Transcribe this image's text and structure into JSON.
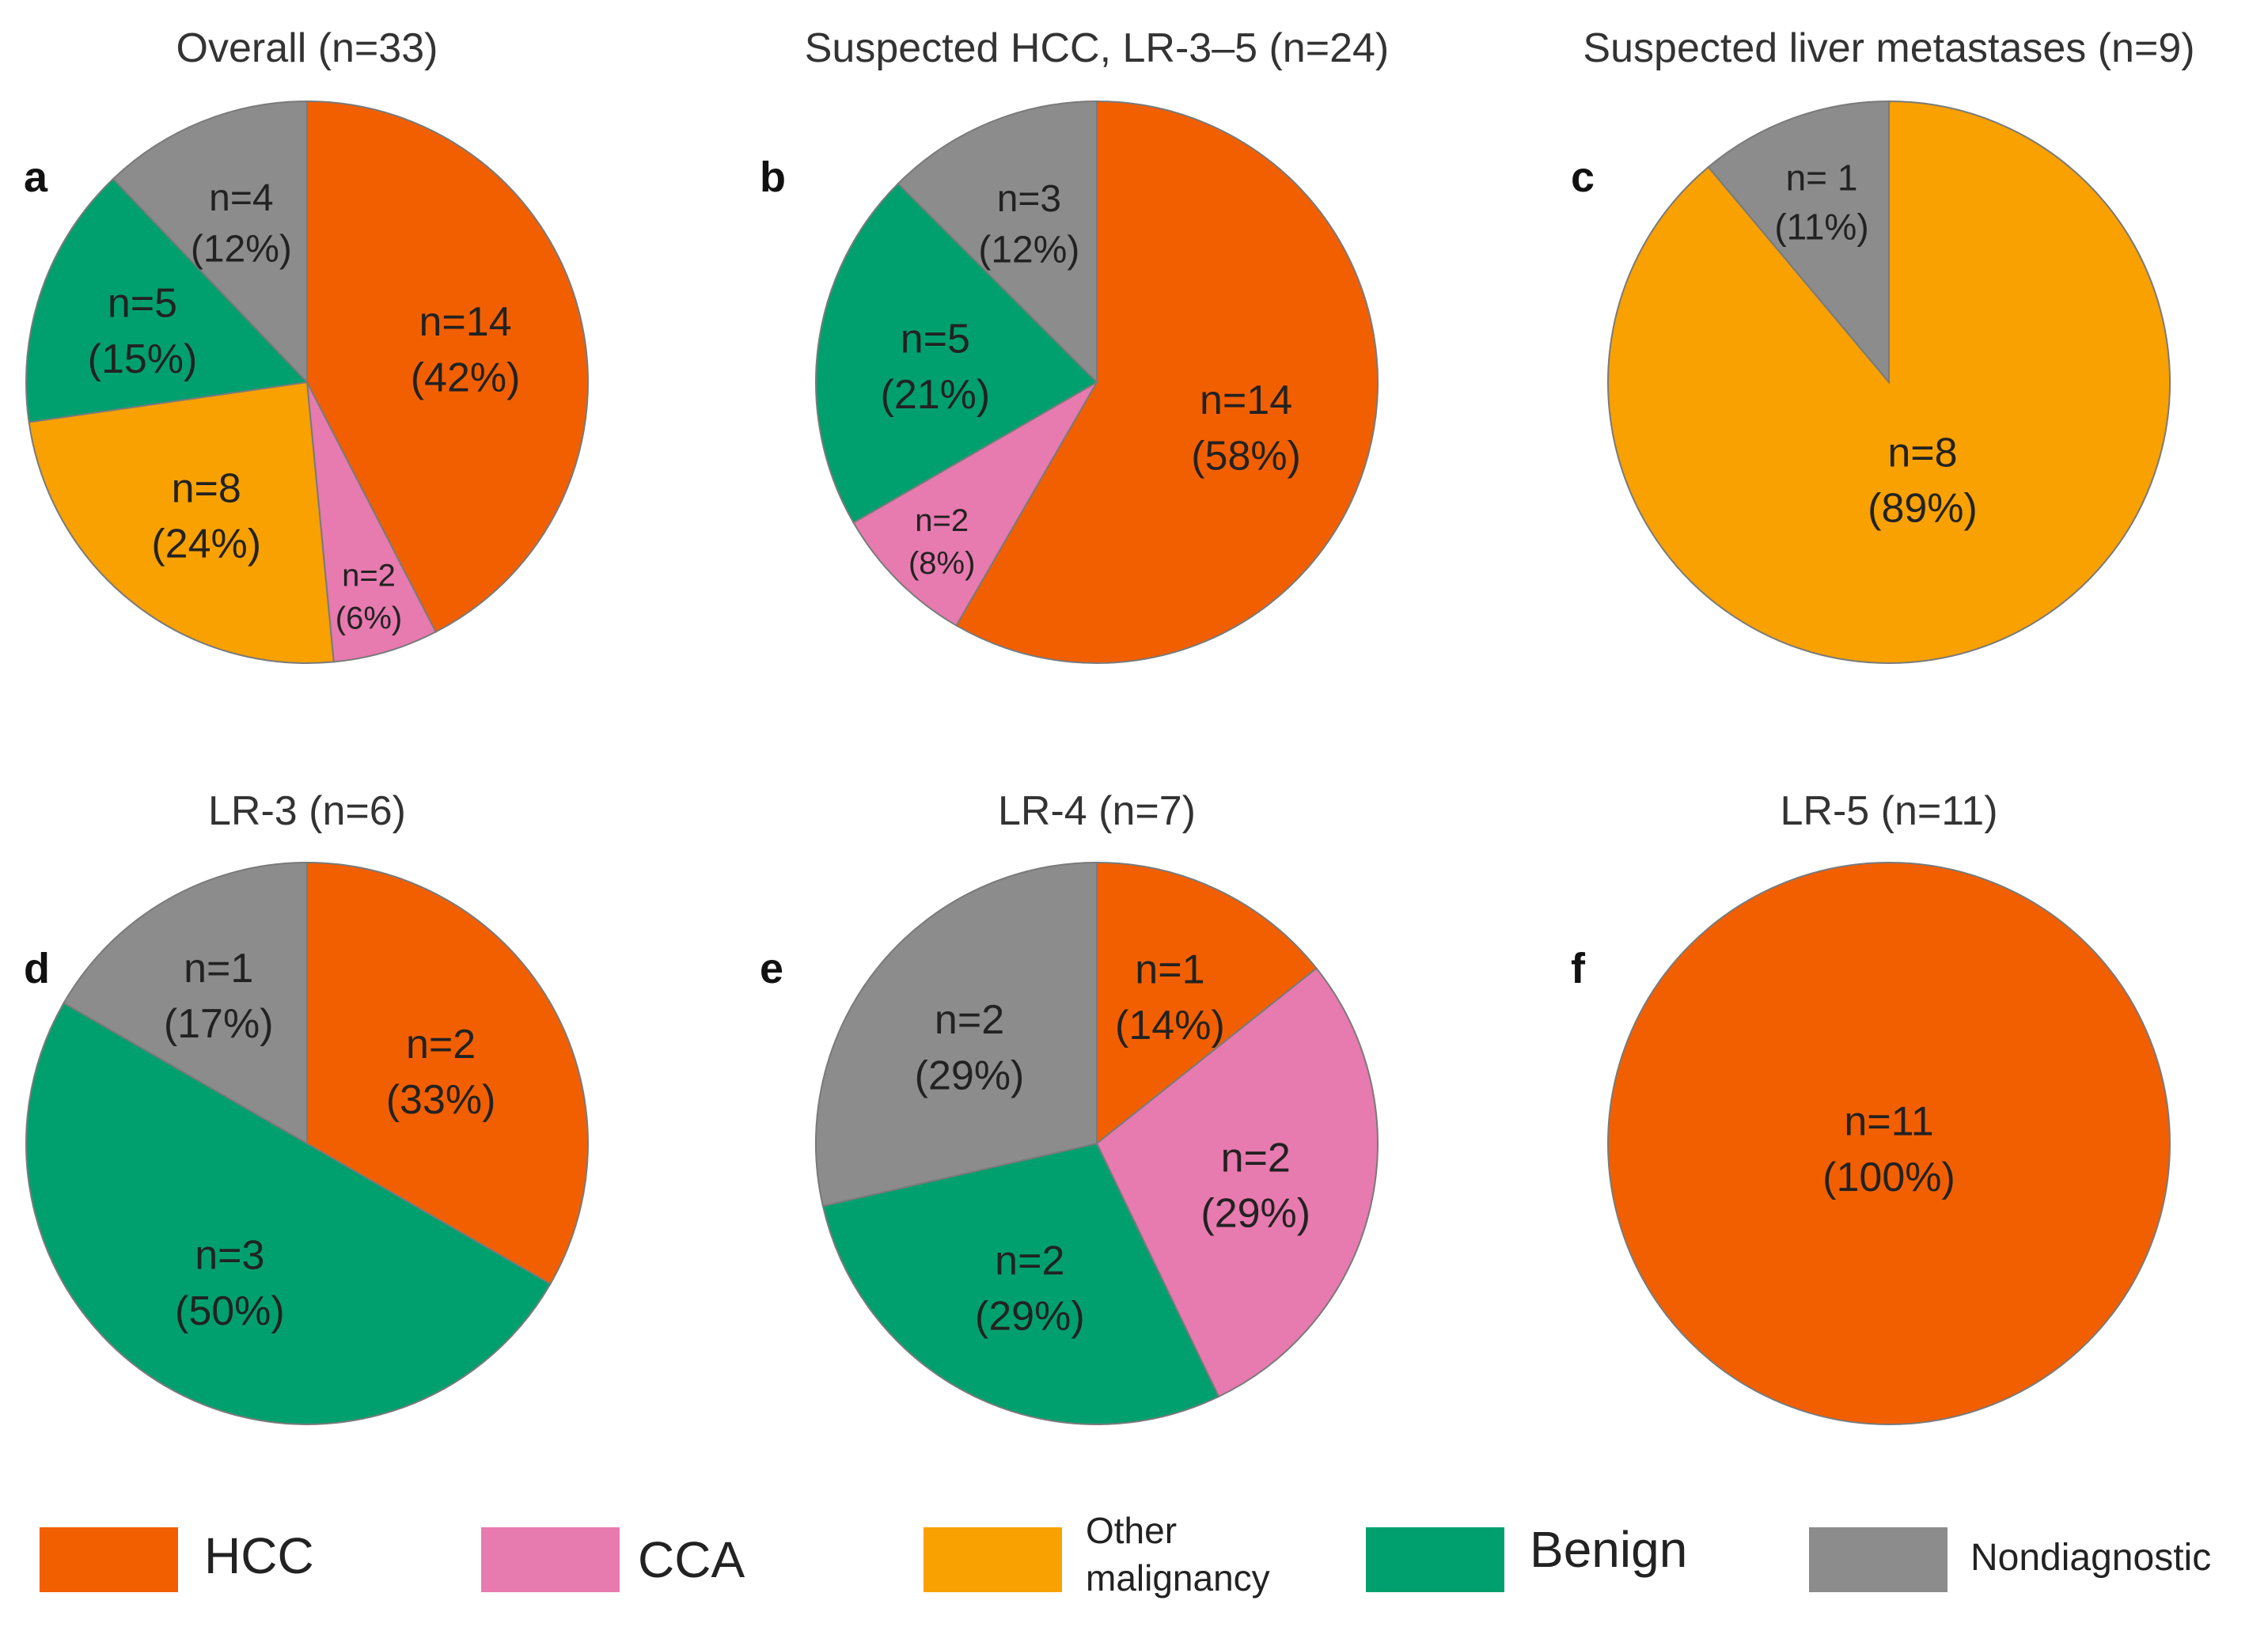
{
  "chart_data": [
    {
      "type": "pie",
      "panel": "a",
      "title": "Overall (n=33)",
      "slices": [
        {
          "category": "HCC",
          "value": 14,
          "line1": "n=14",
          "line2": "(42%)"
        },
        {
          "category": "CCA",
          "value": 2,
          "line1": "n=2",
          "line2": "(6%)"
        },
        {
          "category": "Other malignancy",
          "value": 8,
          "line1": "n=8",
          "line2": "(24%)"
        },
        {
          "category": "Benign",
          "value": 5,
          "line1": "n=5",
          "line2": "(15%)"
        },
        {
          "category": "Nondiagnostic",
          "value": 4,
          "line1": "n=4",
          "line2": "(12%)"
        }
      ]
    },
    {
      "type": "pie",
      "panel": "b",
      "title": "Suspected HCC, LR-3–5 (n=24)",
      "slices": [
        {
          "category": "HCC",
          "value": 14,
          "line1": "n=14",
          "line2": "(58%)"
        },
        {
          "category": "CCA",
          "value": 2,
          "line1": "n=2",
          "line2": "(8%)"
        },
        {
          "category": "Benign",
          "value": 5,
          "line1": "n=5",
          "line2": "(21%)"
        },
        {
          "category": "Nondiagnostic",
          "value": 3,
          "line1": "n=3",
          "line2": "(12%)"
        }
      ]
    },
    {
      "type": "pie",
      "panel": "c",
      "title": "Suspected liver metastases  (n=9)",
      "slices": [
        {
          "category": "Other malignancy",
          "value": 8,
          "line1": "n=8",
          "line2": "(89%)"
        },
        {
          "category": "Nondiagnostic",
          "value": 1,
          "line1": "n= 1",
          "line2": "(11%)"
        }
      ]
    },
    {
      "type": "pie",
      "panel": "d",
      "title": "LR-3 (n=6)",
      "slices": [
        {
          "category": "HCC",
          "value": 2,
          "line1": "n=2",
          "line2": "(33%)"
        },
        {
          "category": "Benign",
          "value": 3,
          "line1": "n=3",
          "line2": "(50%)"
        },
        {
          "category": "Nondiagnostic",
          "value": 1,
          "line1": "n=1",
          "line2": "(17%)"
        }
      ]
    },
    {
      "type": "pie",
      "panel": "e",
      "title": "LR-4 (n=7)",
      "slices": [
        {
          "category": "HCC",
          "value": 1,
          "line1": "n=1",
          "line2": "(14%)"
        },
        {
          "category": "CCA",
          "value": 2,
          "line1": "n=2",
          "line2": "(29%)"
        },
        {
          "category": "Benign",
          "value": 2,
          "line1": "n=2",
          "line2": "(29%)"
        },
        {
          "category": "Nondiagnostic",
          "value": 2,
          "line1": "n=2",
          "line2": "(29%)"
        }
      ]
    },
    {
      "type": "pie",
      "panel": "f",
      "title": "LR-5 (n=11)",
      "slices": [
        {
          "category": "HCC",
          "value": 11,
          "line1": "n=11",
          "line2": "(100%)"
        }
      ]
    }
  ],
  "legend": [
    {
      "label": "HCC",
      "color": "#f25f00"
    },
    {
      "label": "CCA",
      "color": "#e77aaf"
    },
    {
      "label": "Other malignancy",
      "color": "#f8a100"
    },
    {
      "label": "Benign",
      "color": "#00a06e"
    },
    {
      "label": "Nondiagnostic",
      "color": "#8c8c8c"
    }
  ]
}
